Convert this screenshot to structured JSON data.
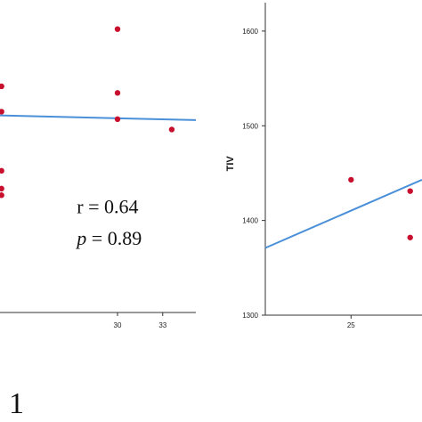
{
  "colors": {
    "point": "#c8102e",
    "fit_line": "#4a90d9",
    "axis": "#333333"
  },
  "chart_data": [
    {
      "type": "scatter",
      "title": "",
      "xlabel": "",
      "ylabel": "",
      "xlim": [
        22.2,
        35.2
      ],
      "ylim": [
        1307,
        1640
      ],
      "x_ticks": [
        30,
        33
      ],
      "x_tick_labels": [
        "30",
        "33"
      ],
      "y_ticks": [],
      "grid": false,
      "points": [
        {
          "x": 22.3,
          "y": 1548
        },
        {
          "x": 22.3,
          "y": 1521
        },
        {
          "x": 22.3,
          "y": 1458
        },
        {
          "x": 22.3,
          "y": 1439
        },
        {
          "x": 22.3,
          "y": 1432
        },
        {
          "x": 30.0,
          "y": 1609
        },
        {
          "x": 30.0,
          "y": 1541
        },
        {
          "x": 30.0,
          "y": 1513
        },
        {
          "x": 33.6,
          "y": 1502
        }
      ],
      "fit_line": {
        "x": [
          22.2,
          35.2
        ],
        "y": [
          1517,
          1512
        ]
      },
      "annotations": [
        {
          "text": "r = 0.64",
          "italic": false,
          "x": 27.3,
          "y": 1413
        },
        {
          "prefix": "p",
          "text": " = 0.89",
          "italic_prefix": true,
          "x": 27.3,
          "y": 1379
        }
      ],
      "panel_label": "1"
    },
    {
      "type": "scatter",
      "title": "",
      "xlabel": "",
      "ylabel": "TIV",
      "xlim": [
        22.1,
        27.4
      ],
      "ylim": [
        1300,
        1630
      ],
      "x_ticks": [
        25
      ],
      "x_tick_labels": [
        "25"
      ],
      "y_ticks": [
        1300,
        1400,
        1500,
        1600
      ],
      "y_tick_labels": [
        "1300",
        "1400",
        "1500",
        "1600"
      ],
      "grid": false,
      "points": [
        {
          "x": 25.0,
          "y": 1443
        },
        {
          "x": 27.0,
          "y": 1431
        },
        {
          "x": 27.0,
          "y": 1382
        }
      ],
      "fit_line": {
        "x": [
          22.1,
          27.4
        ],
        "y": [
          1371,
          1443
        ]
      }
    }
  ]
}
